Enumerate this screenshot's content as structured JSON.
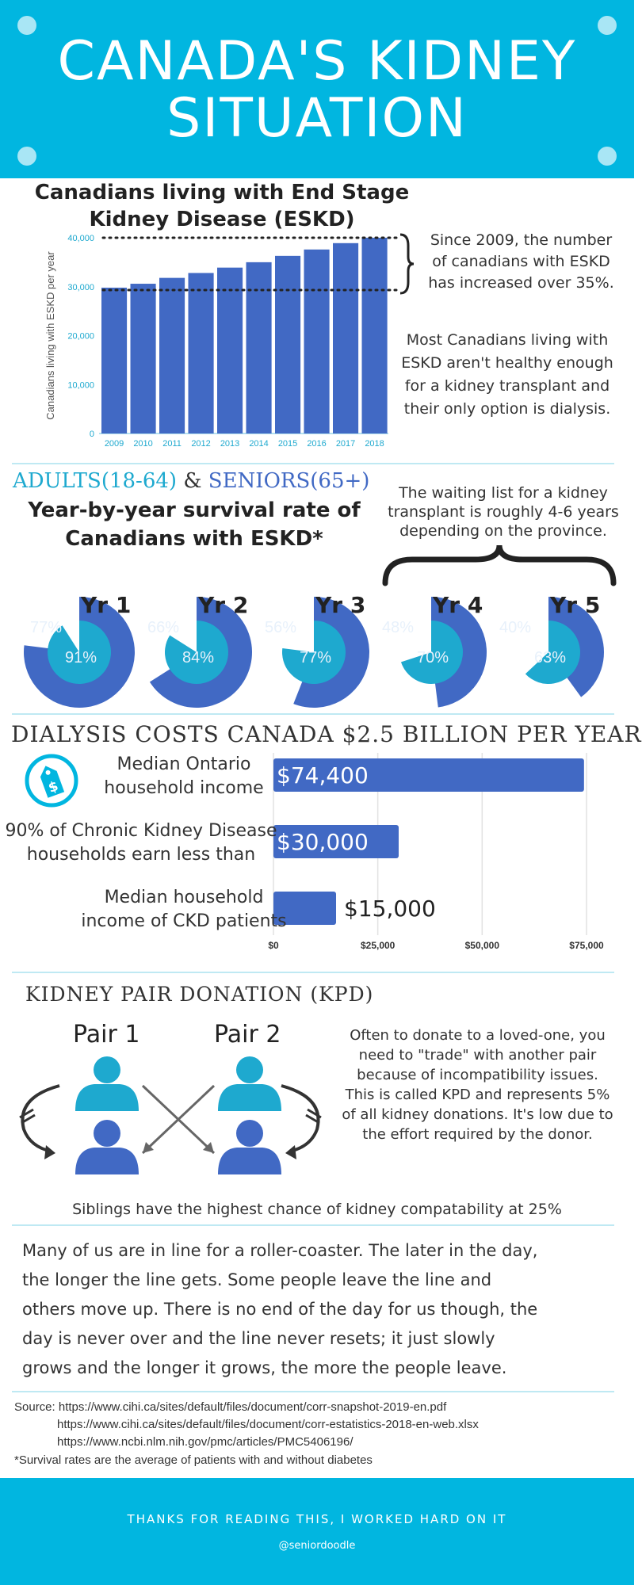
{
  "header": {
    "title_line1": "CANADA'S KIDNEY",
    "title_line2": "SITUATION"
  },
  "section1": {
    "title_line1": "Canadians living with End Stage",
    "title_line2": "Kidney Disease (ESKD)",
    "note1": [
      "Since 2009, the number",
      "of canadians with ESKD",
      "has increased over 35%."
    ],
    "note2": [
      "Most Canadians living with",
      "ESKD aren't healthy enough",
      "for a kidney transplant and",
      "their only option is dialysis."
    ]
  },
  "section2": {
    "adults": "ADULTS(18-64)",
    "amp": "&",
    "seniors": "SENIORS(65+)",
    "title_line1": "Year-by-year survival rate of",
    "title_line2": "Canadians with ESKD*",
    "waiting": [
      "The waiting list for a kidney",
      "transplant is roughly 4-6 years",
      "depending on the province."
    ]
  },
  "section3": {
    "title": "DIALYSIS COSTS CANADA $2.5 BILLION PER YEAR"
  },
  "section4": {
    "title": "KIDNEY PAIR DONATION (KPD)",
    "pair1": "Pair 1",
    "pair2": "Pair 2",
    "desc": [
      "Often to donate to a loved-one, you",
      "need to \"trade\" with another pair",
      "because of incompatibility issues.",
      "This is called KPD and represents 5%",
      "of all kidney donations. It's low due to",
      "the effort required by the donor."
    ],
    "siblings": "Siblings have the highest chance of kidney compatability at 25%"
  },
  "story": [
    "Many of us are in line for a roller-coaster. The later in the day,",
    "the longer the line gets. Some people leave the line and",
    "others move up. There is no end of the day for us though, the",
    "day is never over and the line never resets; it just slowly",
    "grows and the longer it grows, the more the people leave."
  ],
  "sources": {
    "line1": "Source: https://www.cihi.ca/sites/default/files/document/corr-snapshot-2019-en.pdf",
    "line2": "https://www.cihi.ca/sites/default/files/document/corr-estatistics-2018-en-web.xlsx",
    "line3": "https://www.ncbi.nlm.nih.gov/pmc/articles/PMC5406196/",
    "note": "*Survival rates are the average of patients with and without diabetes"
  },
  "footer": {
    "thanks": "THANKS FOR READING THIS, I WORKED HARD ON IT",
    "handle": "@seniordoodle"
  },
  "colors": {
    "brand": "#01b6e0",
    "bar": "#4169c4",
    "light": "#1ea9cf"
  },
  "icons": {
    "money": "money-tag-icon",
    "person": "person-icon"
  },
  "chart_data": [
    {
      "type": "bar",
      "title": "Canadians living with End Stage Kidney Disease (ESKD)",
      "ylabel": "Canadians living with ESKD per year",
      "categories": [
        "2009",
        "2010",
        "2011",
        "2012",
        "2013",
        "2014",
        "2015",
        "2016",
        "2017",
        "2018"
      ],
      "values": [
        29800,
        30600,
        31800,
        32800,
        33900,
        35000,
        36300,
        37600,
        38900,
        40000
      ],
      "yticks": [
        "0",
        "10,000",
        "20,000",
        "30,000",
        "40,000"
      ],
      "ylim": [
        0,
        40000
      ],
      "grid": false
    },
    {
      "type": "pie",
      "title": "Year-by-year survival rate of Canadians with ESKD*",
      "series": [
        {
          "name": "ADULTS(18-64)",
          "values": [
            91,
            84,
            77,
            70,
            63
          ]
        },
        {
          "name": "SENIORS(65+)",
          "values": [
            77,
            66,
            56,
            48,
            40
          ]
        }
      ],
      "categories": [
        "Yr 1",
        "Yr 2",
        "Yr 3",
        "Yr 4",
        "Yr 5"
      ],
      "labels_outer": [
        "77%",
        "66%",
        "56%",
        "48%",
        "40%"
      ],
      "labels_inner": [
        "91%",
        "84%",
        "77%",
        "70%",
        "63%"
      ]
    },
    {
      "type": "bar",
      "orientation": "horizontal",
      "categories": [
        [
          "Median Ontario",
          "household income"
        ],
        [
          "90% of Chronic Kidney Disease",
          "households earn less than"
        ],
        [
          "Median household",
          "income of CKD patients"
        ]
      ],
      "values": [
        74400,
        30000,
        15000
      ],
      "value_labels": [
        "$74,400",
        "$30,000",
        "$15,000"
      ],
      "xticks": [
        "$0",
        "$25,000",
        "$50,000",
        "$75,000"
      ],
      "xlim": [
        0,
        75000
      ],
      "grid": true
    }
  ]
}
